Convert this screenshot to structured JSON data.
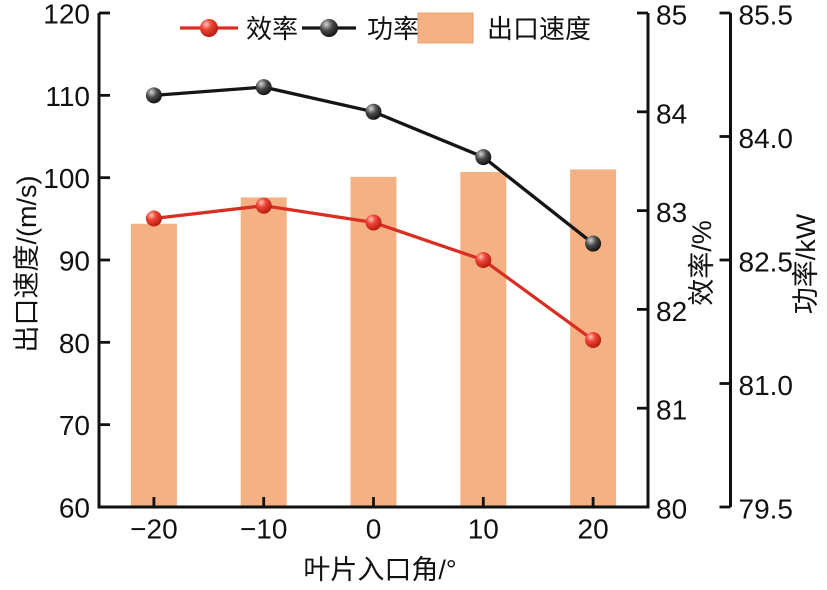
{
  "chart_data": {
    "type": "bar+line",
    "x": [
      -20,
      -10,
      0,
      10,
      20
    ],
    "x_tick_labels": [
      "−20",
      "−10",
      "0",
      "10",
      "20"
    ],
    "x_range": [
      -25,
      25
    ],
    "xlabel": "叶片入口角/°",
    "grid": false,
    "legend_position": "top",
    "background": "#ffffff",
    "axes": {
      "left": {
        "label": "出口速度/(m/s)",
        "unit": "m/s",
        "min": 60,
        "max": 120,
        "tick_values": [
          60,
          70,
          80,
          90,
          100,
          110,
          120
        ],
        "tick_labels": [
          "60",
          "70",
          "80",
          "90",
          "100",
          "110",
          "120"
        ]
      },
      "efficiency": {
        "label": "效率/%",
        "unit": "%",
        "min": 80,
        "max": 85,
        "tick_values": [
          80,
          81,
          82,
          83,
          84,
          85
        ],
        "tick_labels": [
          "80",
          "81",
          "82",
          "83",
          "84",
          "85"
        ]
      },
      "power": {
        "label": "功率/kW",
        "unit": "kW",
        "min": 79.5,
        "max": 85.5,
        "tick_values": [
          79.5,
          81.0,
          82.5,
          84.0,
          85.5
        ],
        "tick_labels": [
          "79.5",
          "81.0",
          "82.5",
          "84.0",
          "85.5"
        ]
      }
    },
    "series": [
      {
        "name": "出口速度",
        "type": "bar",
        "axis": "left",
        "color": "#F4B183",
        "values": [
          94.4,
          97.6,
          100.1,
          100.7,
          101.0
        ]
      },
      {
        "name": "效率",
        "type": "line",
        "axis": "efficiency",
        "color": "#D92F23",
        "values": [
          82.92,
          83.05,
          82.88,
          82.5,
          81.69
        ]
      },
      {
        "name": "功率",
        "type": "line",
        "axis": "power",
        "color": "#151515",
        "values": [
          84.5,
          84.6,
          84.3,
          83.75,
          82.7
        ]
      }
    ],
    "legend": {
      "efficiency_label": "效率",
      "power_label": "功率",
      "velocity_label": "出口速度"
    },
    "colors": {
      "bar": "#F4B183",
      "efficiency_line": "#D92F23",
      "power_line": "#151515",
      "axis": "#111111"
    }
  }
}
